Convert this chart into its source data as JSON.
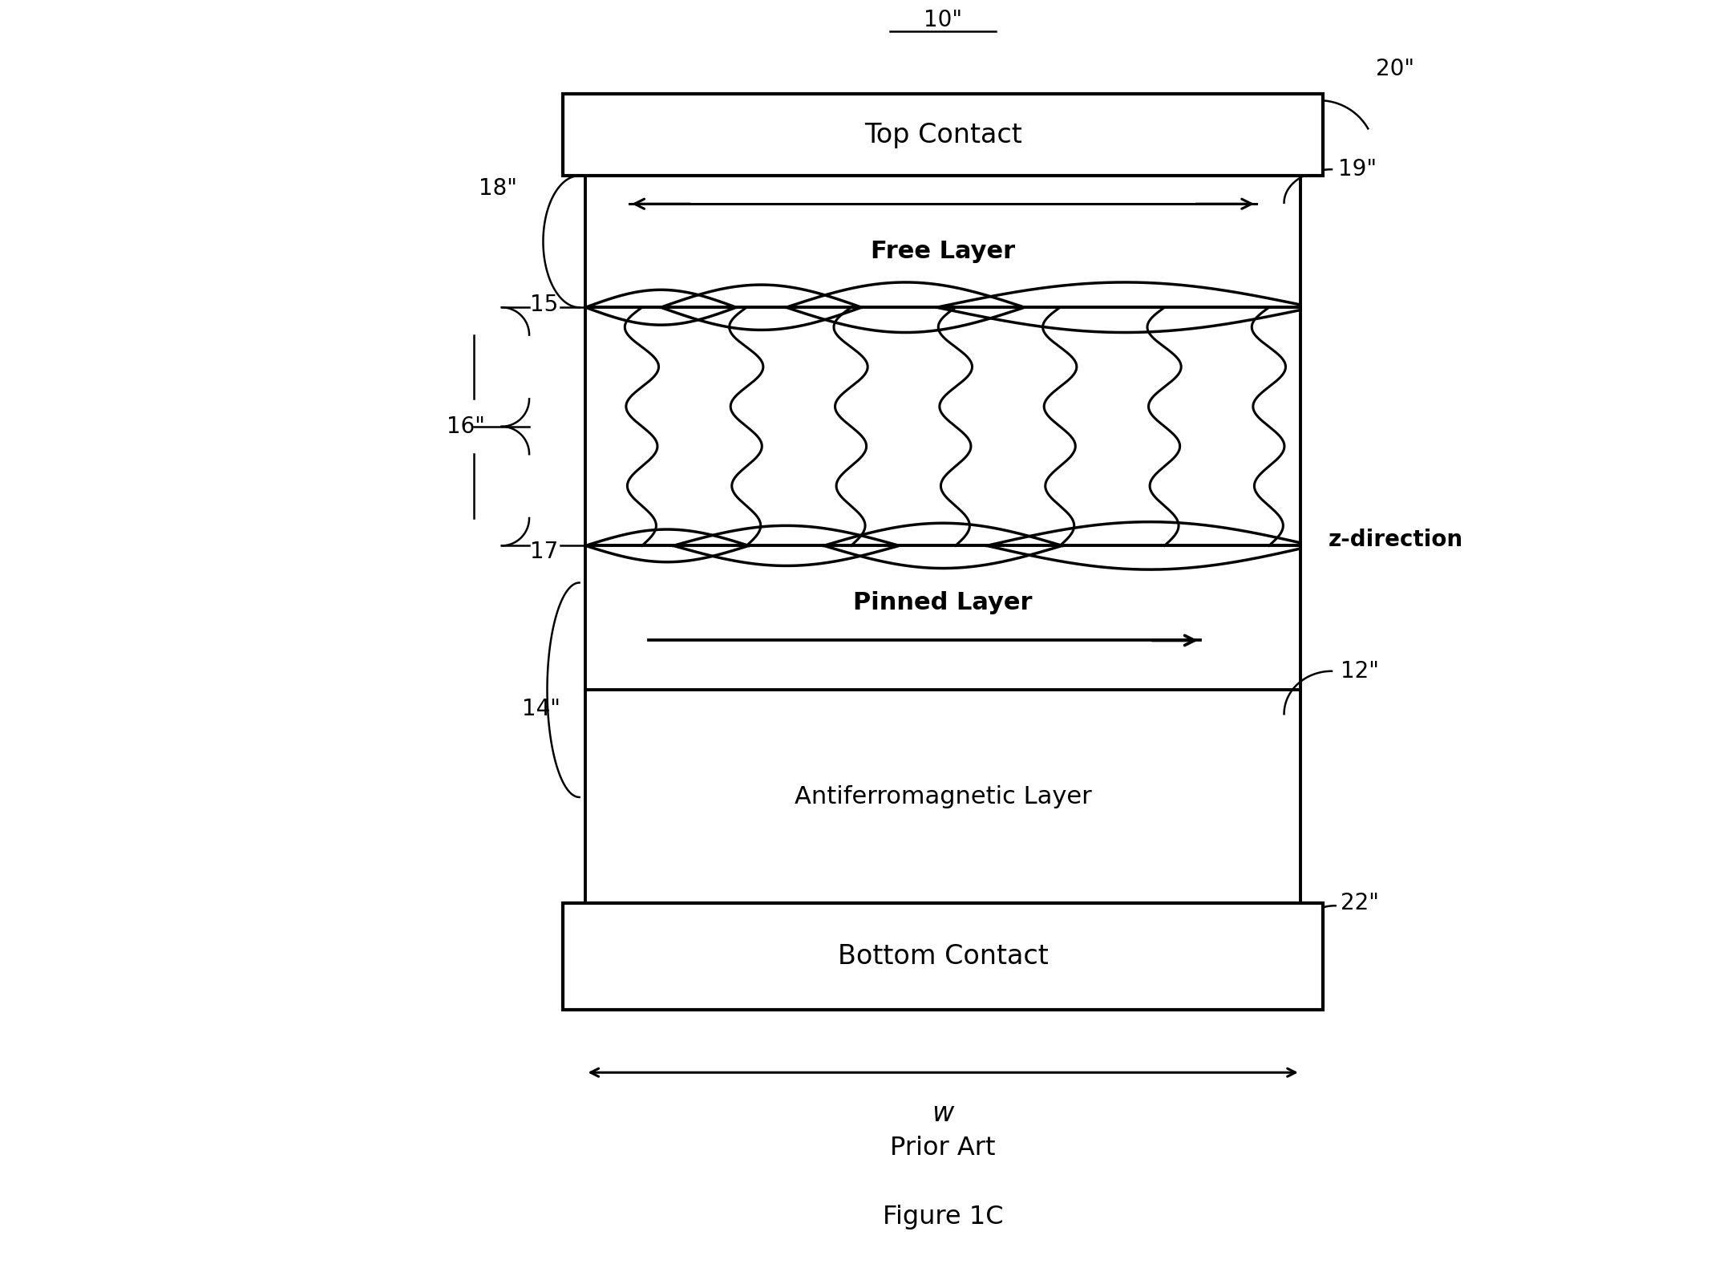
{
  "fig_width": 21.49,
  "fig_height": 15.76,
  "bg_color": "#ffffff",
  "line_color": "#000000",
  "labels": {
    "top_contact": "Top Contact",
    "free_layer": "Free Layer",
    "pinned_layer": "Pinned Layer",
    "afm_layer": "Antiferromagnetic Layer",
    "bottom_contact": "Bottom Contact",
    "prior_art": "Prior Art",
    "figure": "Figure 1C",
    "w_label": "w",
    "z_direction": "z-direction"
  },
  "ref_nums": {
    "n10": "10\"",
    "n12": "12\"",
    "n14": "14\"",
    "n15": "15",
    "n16": "16\"",
    "n17": "17",
    "n18": "18\"",
    "n19": "19\"",
    "n20": "20\"",
    "n22": "22\""
  },
  "xl": 2.8,
  "xr": 8.5,
  "tc_yb": 8.65,
  "tc_yt": 9.3,
  "tc_extra": 0.18,
  "fl_yb": 7.6,
  "fl_yt": 8.65,
  "sw_yb": 5.7,
  "sw_yt": 7.6,
  "pl_yb": 4.55,
  "pl_yt": 5.7,
  "afm_yb": 2.85,
  "afm_yt": 4.55,
  "bc_yb": 2.0,
  "bc_yt": 2.85,
  "bc_extra": 0.18
}
